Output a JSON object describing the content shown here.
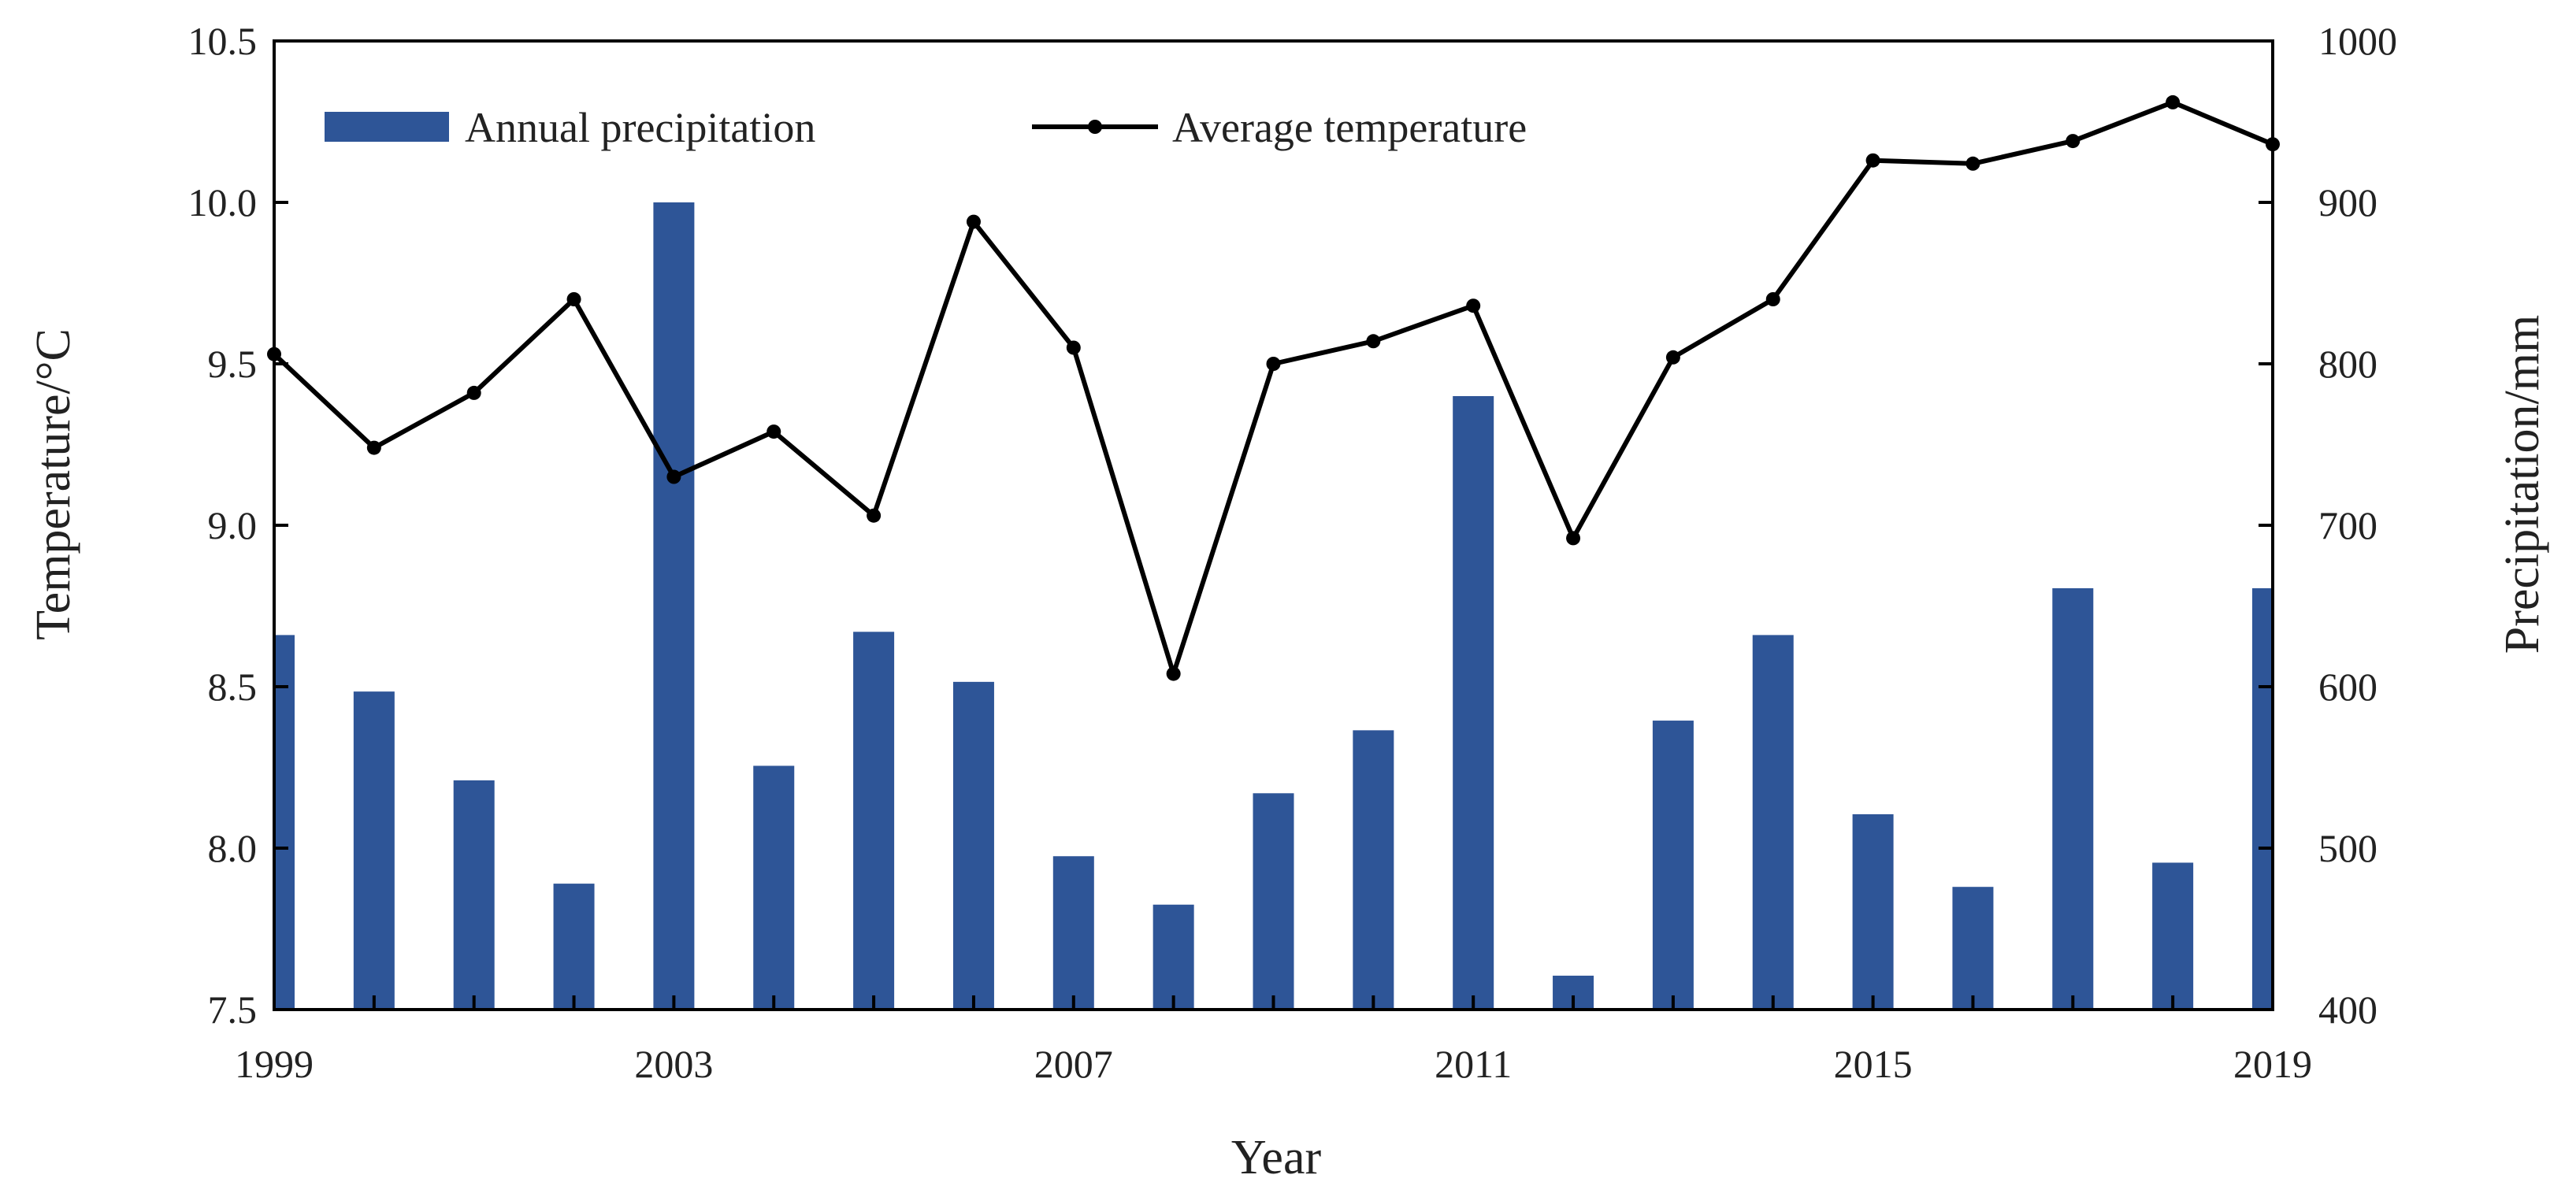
{
  "chart_data": {
    "type": "bar+line",
    "title": "",
    "xlabel": "Year",
    "ylabel_left": "Temperature/°C",
    "ylabel_right": "Precipitation/mm",
    "x": [
      1999,
      2000,
      2001,
      2002,
      2003,
      2004,
      2005,
      2006,
      2007,
      2008,
      2009,
      2010,
      2011,
      2012,
      2013,
      2014,
      2015,
      2016,
      2017,
      2018,
      2019
    ],
    "x_tick_labels": [
      "1999",
      "2003",
      "2007",
      "2011",
      "2015",
      "2019"
    ],
    "xlim": [
      1999,
      2019
    ],
    "ylim_left": [
      7.5,
      10.5
    ],
    "ylim_right": [
      400,
      1000
    ],
    "y_left_tick_labels": [
      "7.5",
      "8.0",
      "8.5",
      "9.0",
      "9.5",
      "10.0",
      "10.5"
    ],
    "y_right_tick_labels": [
      "400",
      "500",
      "600",
      "700",
      "800",
      "900",
      "1000"
    ],
    "series": [
      {
        "name": "Annual precipitation",
        "type": "bar",
        "axis": "right",
        "color": "#2E5597",
        "values": [
          632,
          597,
          542,
          478,
          900,
          551,
          634,
          603,
          495,
          465,
          534,
          573,
          780,
          421,
          579,
          632,
          521,
          476,
          661,
          491,
          661
        ]
      },
      {
        "name": "Average temperature",
        "type": "line",
        "axis": "left",
        "color": "#000000",
        "values": [
          9.53,
          9.24,
          9.41,
          9.7,
          9.15,
          9.29,
          9.03,
          9.94,
          9.55,
          8.54,
          9.5,
          9.57,
          9.68,
          8.96,
          9.52,
          9.7,
          10.13,
          10.12,
          10.19,
          10.31,
          10.18
        ]
      }
    ],
    "legend": {
      "position": "top-left",
      "orientation": "horizontal"
    },
    "grid": false
  }
}
